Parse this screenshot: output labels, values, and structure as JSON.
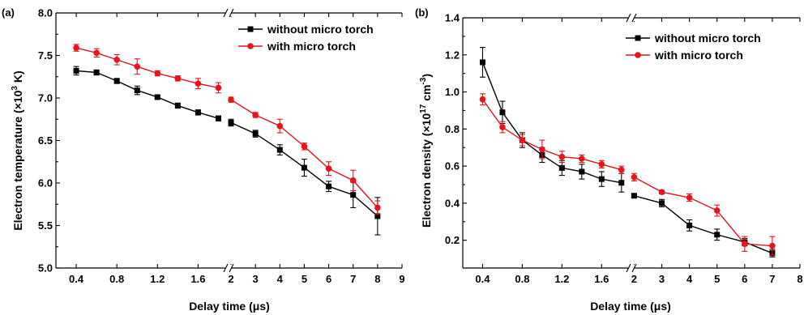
{
  "chart_data": [
    {
      "type": "line",
      "panel_label": "(a)",
      "xlabel": "Delay time (μs)",
      "ylabel": "Electron temperature (×10",
      "ylabel_sup": "3",
      "ylabel_end": " K)",
      "ylim": [
        5.0,
        8.0
      ],
      "y_ticks": [
        "5.0",
        "5.5",
        "6.0",
        "6.5",
        "7.0",
        "7.5",
        "8.0"
      ],
      "x_ticks_left": [
        "0.4",
        "0.8",
        "1.2",
        "1.6"
      ],
      "x_ticks_right": [
        "2",
        "3",
        "4",
        "5",
        "6",
        "7",
        "8",
        "9"
      ],
      "xlim_left": [
        0.2,
        1.9
      ],
      "xlim_right": [
        1.9,
        9
      ],
      "axis_break": "//",
      "legend_position": "top-right",
      "series": [
        {
          "name": "without micro torch",
          "color": "#000000",
          "marker": "square",
          "segments": [
            {
              "x": [
                0.4,
                0.6,
                0.8,
                1.0,
                1.2,
                1.4,
                1.6,
                1.8
              ],
              "y": [
                7.32,
                7.3,
                7.2,
                7.09,
                7.01,
                6.91,
                6.83,
                6.76
              ],
              "err": [
                0.05,
                0.03,
                0.03,
                0.05,
                0.02,
                0.03,
                0.03,
                0.03
              ]
            },
            {
              "x": [
                2,
                3,
                4,
                5,
                6,
                7,
                8
              ],
              "y": [
                6.71,
                6.58,
                6.39,
                6.18,
                5.96,
                5.86,
                5.61
              ],
              "err": [
                0.04,
                0.04,
                0.06,
                0.1,
                0.06,
                0.15,
                0.22
              ]
            }
          ]
        },
        {
          "name": "with micro torch",
          "color": "#e8131c",
          "marker": "circle",
          "segments": [
            {
              "x": [
                0.4,
                0.6,
                0.8,
                1.0,
                1.2,
                1.4,
                1.6,
                1.8
              ],
              "y": [
                7.59,
                7.53,
                7.45,
                7.37,
                7.29,
                7.23,
                7.17,
                7.12
              ],
              "err": [
                0.04,
                0.05,
                0.06,
                0.09,
                0.03,
                0.03,
                0.06,
                0.06
              ]
            },
            {
              "x": [
                2,
                3,
                4,
                5,
                6,
                7,
                8
              ],
              "y": [
                6.98,
                6.8,
                6.67,
                6.43,
                6.17,
                6.03,
                5.71
              ],
              "err": [
                0.03,
                0.03,
                0.08,
                0.04,
                0.08,
                0.12,
                0.08
              ]
            }
          ]
        }
      ]
    },
    {
      "type": "line",
      "panel_label": "(b)",
      "xlabel": "Delay time (μs)",
      "ylabel": "Electron density (×10",
      "ylabel_sup": "17",
      "ylabel_end": " cm",
      "ylabel_sup2": "-3",
      "ylabel_close": ")",
      "ylim": [
        0.05,
        1.4
      ],
      "y_ticks": [
        "0.2",
        "0.4",
        "0.6",
        "0.8",
        "1.0",
        "1.2",
        "1.4"
      ],
      "x_ticks_left": [
        "0.4",
        "0.8",
        "1.2",
        "1.6"
      ],
      "x_ticks_right": [
        "2",
        "3",
        "4",
        "5",
        "6",
        "7",
        "8"
      ],
      "xlim_left": [
        0.2,
        1.9
      ],
      "xlim_right": [
        1.9,
        8
      ],
      "axis_break": "//",
      "legend_position": "top-right",
      "series": [
        {
          "name": "without micro torch",
          "color": "#000000",
          "marker": "square",
          "segments": [
            {
              "x": [
                0.4,
                0.6,
                0.8,
                1.0,
                1.2,
                1.4,
                1.6,
                1.8
              ],
              "y": [
                1.16,
                0.89,
                0.74,
                0.66,
                0.59,
                0.57,
                0.53,
                0.51
              ],
              "err": [
                0.08,
                0.06,
                0.04,
                0.04,
                0.04,
                0.04,
                0.04,
                0.05
              ]
            },
            {
              "x": [
                2,
                3,
                4,
                5,
                6,
                7
              ],
              "y": [
                0.44,
                0.4,
                0.28,
                0.23,
                0.19,
                0.13
              ],
              "err": [
                0.01,
                0.02,
                0.03,
                0.03,
                0.02,
                0.02
              ]
            }
          ]
        },
        {
          "name": "with micro torch",
          "color": "#e8131c",
          "marker": "circle",
          "segments": [
            {
              "x": [
                0.4,
                0.6,
                0.8,
                1.0,
                1.2,
                1.4,
                1.6,
                1.8
              ],
              "y": [
                0.96,
                0.81,
                0.74,
                0.69,
                0.65,
                0.64,
                0.61,
                0.58
              ],
              "err": [
                0.03,
                0.03,
                0.03,
                0.05,
                0.03,
                0.02,
                0.02,
                0.02
              ]
            },
            {
              "x": [
                2,
                3,
                4,
                5,
                6,
                7
              ],
              "y": [
                0.54,
                0.46,
                0.43,
                0.36,
                0.18,
                0.17
              ],
              "err": [
                0.02,
                0.01,
                0.02,
                0.03,
                0.04,
                0.05
              ]
            }
          ]
        }
      ]
    }
  ]
}
